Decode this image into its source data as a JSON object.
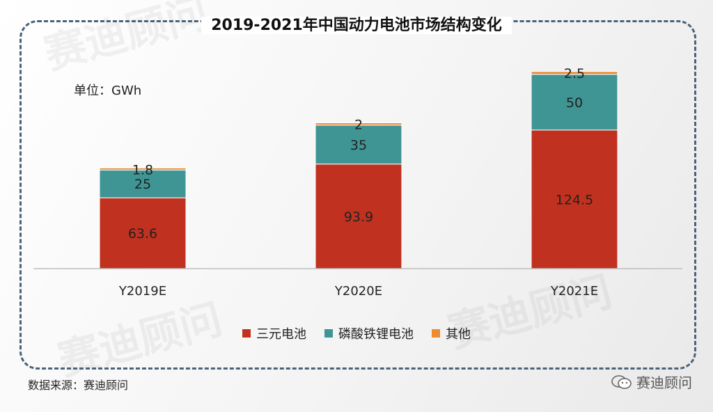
{
  "title": "2019-2021年中国动力电池市场结构变化",
  "unit_label": "单位：GWh",
  "source": "数据来源：赛迪顾问",
  "logo_text": "赛迪顾问",
  "watermark_text": "赛迪顾问",
  "chart_data": {
    "type": "bar",
    "stacked": true,
    "categories": [
      "Y2019E",
      "Y2020E",
      "Y2021E"
    ],
    "series": [
      {
        "name": "三元电池",
        "values": [
          63.6,
          93.9,
          124.5
        ],
        "labels": [
          "63.6",
          "93.9",
          "124.5"
        ],
        "color": "#c0311f"
      },
      {
        "name": "磷酸铁锂电池",
        "values": [
          25,
          35,
          50
        ],
        "labels": [
          "25",
          "35",
          "50"
        ],
        "color": "#3f9494"
      },
      {
        "name": "其他",
        "values": [
          1.8,
          2,
          2.5
        ],
        "labels": [
          "1.8",
          "2",
          "2.5"
        ],
        "color": "#ee8a2f"
      }
    ],
    "ylim": [
      0,
      180
    ],
    "grid": false,
    "legend_position": "bottom"
  }
}
